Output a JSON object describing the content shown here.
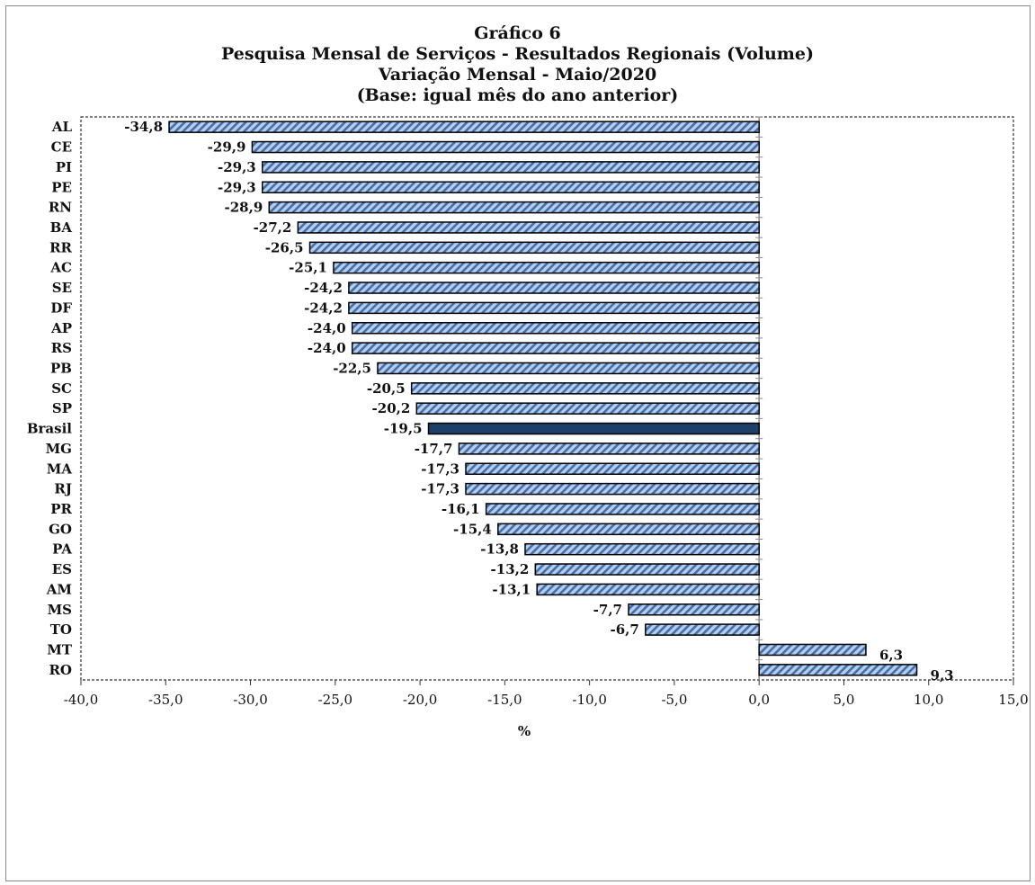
{
  "chart_data": {
    "type": "bar",
    "orientation": "horizontal",
    "title_lines": [
      "Gráfico 6",
      "Pesquisa  Mensal de Serviços - Resultados Regionais (Volume)",
      "Variação Mensal - Maio/2020",
      "(Base: igual mês do ano anterior)"
    ],
    "categories": [
      "AL",
      "CE",
      "PI",
      "PE",
      "RN",
      "BA",
      "RR",
      "AC",
      "SE",
      "DF",
      "AP",
      "RS",
      "PB",
      "SC",
      "SP",
      "Brasil",
      "MG",
      "MA",
      "RJ",
      "PR",
      "GO",
      "PA",
      "ES",
      "AM",
      "MS",
      "TO",
      "MT",
      "RO"
    ],
    "values": [
      -34.8,
      -29.9,
      -29.3,
      -29.3,
      -28.9,
      -27.2,
      -26.5,
      -25.1,
      -24.2,
      -24.2,
      -24.0,
      -24.0,
      -22.5,
      -20.5,
      -20.2,
      -19.5,
      -17.7,
      -17.3,
      -17.3,
      -16.1,
      -15.4,
      -13.8,
      -13.2,
      -13.1,
      -7.7,
      -6.7,
      6.3,
      9.3
    ],
    "data_labels": [
      "-34,8",
      "-29,9",
      "-29,3",
      "-29,3",
      "-28,9",
      "-27,2",
      "-26,5",
      "-25,1",
      "-24,2",
      "-24,2",
      "-24,0",
      "-24,0",
      "-22,5",
      "-20,5",
      "-20,2",
      "-19,5",
      "-17,7",
      "-17,3",
      "-17,3",
      "-16,1",
      "-15,4",
      "-13,8",
      "-13,2",
      "-13,1",
      "-7,7",
      "-6,7",
      "6,3",
      "9,3"
    ],
    "highlight_category": "Brasil",
    "xlabel": "%",
    "ylabel": "",
    "xlim": [
      -40,
      15
    ],
    "x_ticks": [
      -40,
      -35,
      -30,
      -25,
      -20,
      -15,
      -10,
      -5,
      0,
      5,
      10,
      15
    ],
    "x_tick_labels": [
      "-40,0",
      "-35,0",
      "-30,0",
      "-25,0",
      "-20,0",
      "-15,0",
      "-10,0",
      "-5,0",
      "0,0",
      "5,0",
      "10,0",
      "15,0"
    ],
    "grid": false,
    "legend": "none",
    "colors": {
      "bar_fill": "#b9cde8",
      "bar_hatch": "#3f6fae",
      "bar_outline": "#000000",
      "highlight_fill": "#1f3f6b",
      "plot_border": "#333333",
      "frame_border": "#8a8a8a",
      "zero_line": "#8a8a8a"
    }
  }
}
